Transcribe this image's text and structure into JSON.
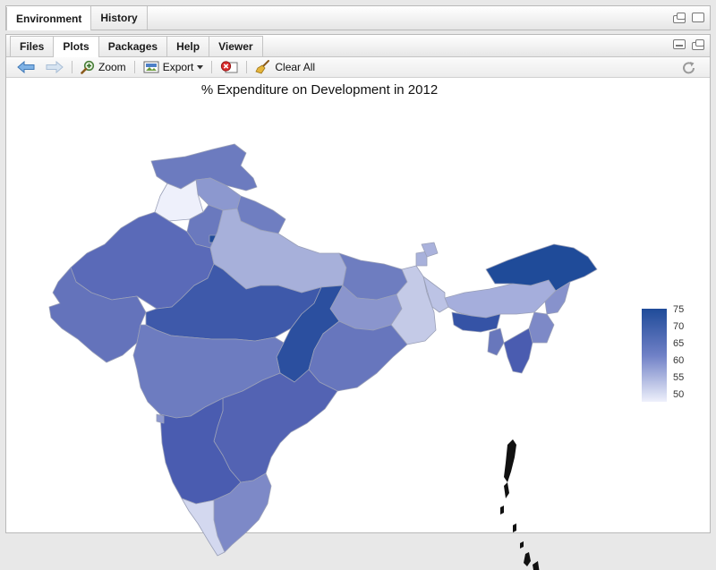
{
  "top_pane": {
    "tabs": [
      {
        "label": "Environment"
      },
      {
        "label": "History"
      }
    ]
  },
  "bottom_pane": {
    "tabs": [
      {
        "label": "Files"
      },
      {
        "label": "Plots"
      },
      {
        "label": "Packages"
      },
      {
        "label": "Help"
      },
      {
        "label": "Viewer"
      }
    ],
    "active_tab": "Plots"
  },
  "toolbar": {
    "zoom_label": "Zoom",
    "export_label": "Export",
    "clear_all_label": "Clear All"
  },
  "plot": {
    "title": "% Expenditure on Development in 2012",
    "legend_ticks": [
      "75",
      "70",
      "65",
      "60",
      "55",
      "50"
    ],
    "colors": {
      "low": "#eef0fb",
      "high": "#1f4b99"
    }
  }
}
